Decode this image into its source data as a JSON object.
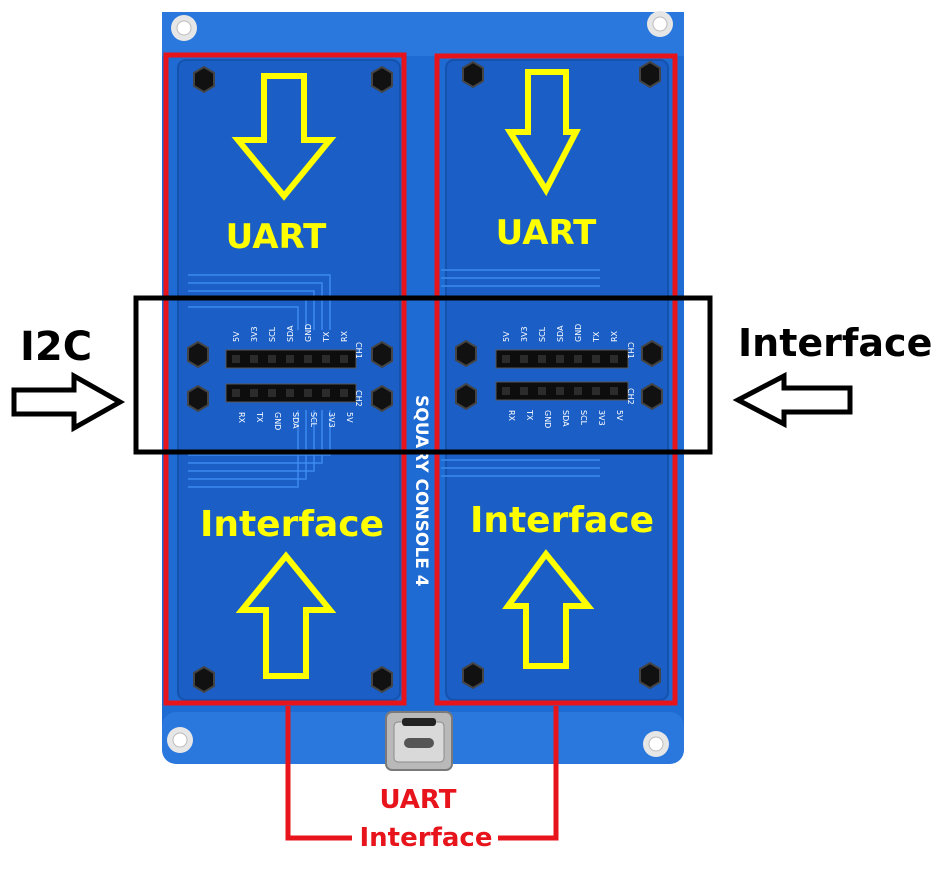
{
  "colors": {
    "board": "#1e6bd3",
    "board_panel": "#1b5fc6",
    "trace": "#3c8af0",
    "highlight_red": "#e8141c",
    "highlight_black": "#000000",
    "arrow_yellow": "#ffff00"
  },
  "left_module": {
    "top_label": "UART",
    "bottom_label": "Interface"
  },
  "right_module": {
    "top_label": "UART",
    "bottom_label": "Interface"
  },
  "side_labels": {
    "left": "I2C",
    "right": "Interface"
  },
  "bottom_labels": {
    "line1": "UART",
    "line2": "Interface"
  },
  "silkscreen": {
    "board_name": "SQUARY CONSOLE 4",
    "header_top_pins": [
      "5V",
      "3V3",
      "SCL",
      "SDA",
      "GND",
      "TX",
      "RX"
    ],
    "header_bottom_pins": [
      "RX",
      "TX",
      "GND",
      "SDA",
      "SCL",
      "3V3",
      "5V"
    ],
    "header_id_top": "CH1",
    "header_id_bottom": "CH2"
  },
  "icons": [
    "mounting-hole-icon",
    "hex-standoff-icon",
    "usb-c-connector-icon",
    "arrow-down-icon",
    "arrow-up-icon",
    "arrow-right-icon",
    "arrow-left-icon"
  ]
}
